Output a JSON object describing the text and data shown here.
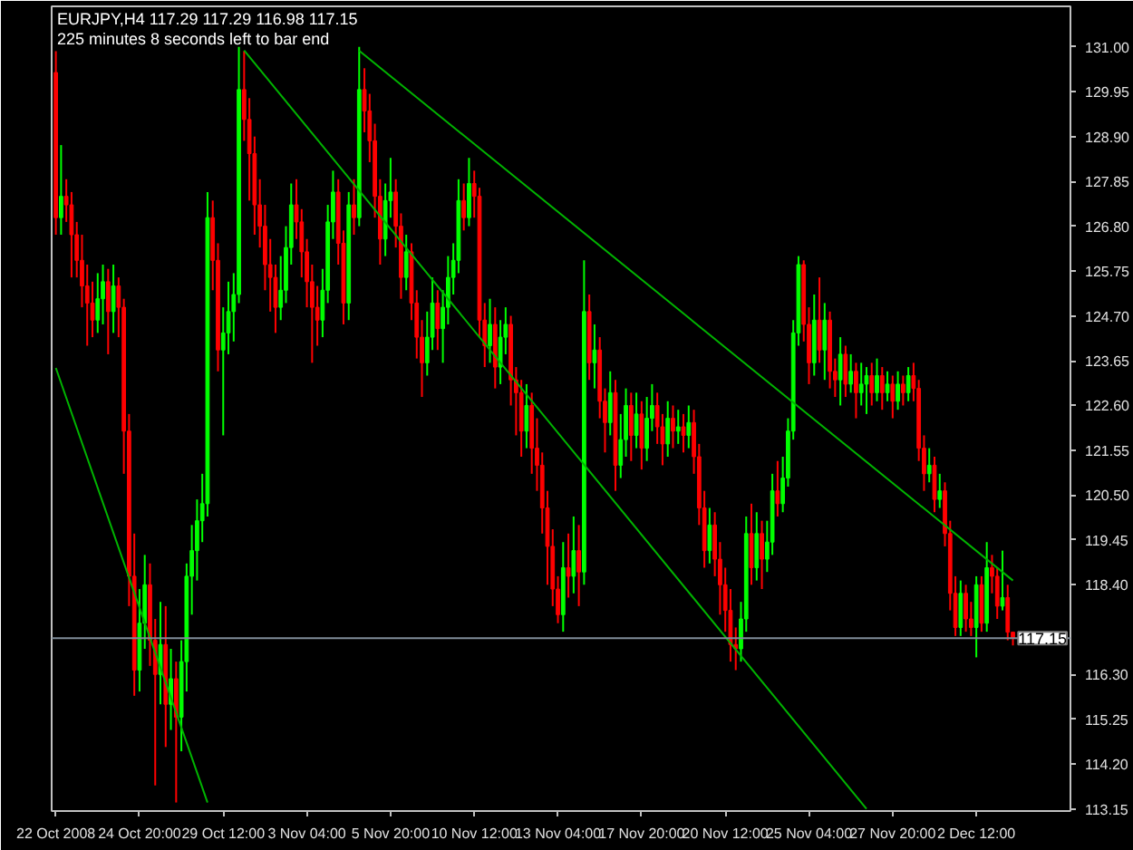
{
  "chart_data": {
    "type": "candlestick",
    "title": "EURJPY,H4  117.29 117.29 116.98 117.15",
    "subtitle": "225 minutes 8 seconds left to bar end",
    "categories": [
      "22 Oct 2008",
      null,
      null,
      null,
      null,
      null,
      null,
      null,
      null,
      null,
      null,
      null,
      null,
      null,
      null,
      null,
      "24 Oct 20:00",
      null,
      null,
      null,
      null,
      null,
      null,
      null,
      null,
      null,
      null,
      null,
      null,
      null,
      null,
      null,
      "29 Oct 12:00",
      null,
      null,
      null,
      null,
      null,
      null,
      null,
      null,
      null,
      null,
      null,
      null,
      null,
      null,
      null,
      "3 Nov 04:00",
      null,
      null,
      null,
      null,
      null,
      null,
      null,
      null,
      null,
      null,
      null,
      null,
      null,
      null,
      null,
      "5 Nov 20:00",
      null,
      null,
      null,
      null,
      null,
      null,
      null,
      null,
      null,
      null,
      null,
      null,
      null,
      null,
      null,
      "10 Nov 12:00",
      null,
      null,
      null,
      null,
      null,
      null,
      null,
      null,
      null,
      null,
      null,
      null,
      null,
      null,
      null,
      "13 Nov 04:00",
      null,
      null,
      null,
      null,
      null,
      null,
      null,
      null,
      null,
      null,
      null,
      null,
      null,
      null,
      null,
      "17 Nov 20:00",
      null,
      null,
      null,
      null,
      null,
      null,
      null,
      null,
      null,
      null,
      null,
      null,
      null,
      null,
      null,
      "20 Nov 12:00",
      null,
      null,
      null,
      null,
      null,
      null,
      null,
      null,
      null,
      null,
      null,
      null,
      null,
      null,
      null,
      "25 Nov 04:00",
      null,
      null,
      null,
      null,
      null,
      null,
      null,
      null,
      null,
      null,
      null,
      null,
      null,
      null,
      null,
      "27 Nov 20:00",
      null,
      null,
      null,
      null,
      null,
      null,
      null,
      null,
      null,
      null,
      null,
      null,
      null,
      null,
      null,
      "2 Dec 12:00",
      null,
      null,
      null,
      null,
      null,
      null,
      null
    ],
    "ohlc": [
      [
        130.4,
        130.9,
        126.6,
        127.0
      ],
      [
        127.0,
        128.7,
        126.6,
        127.5
      ],
      [
        127.5,
        127.9,
        126.9,
        127.3
      ],
      [
        127.3,
        127.6,
        125.6,
        126.6
      ],
      [
        126.6,
        126.9,
        125.6,
        126.0
      ],
      [
        126.0,
        126.6,
        124.9,
        125.4
      ],
      [
        125.4,
        125.9,
        124.0,
        125.0
      ],
      [
        125.0,
        125.5,
        124.2,
        124.6
      ],
      [
        124.6,
        125.7,
        124.3,
        125.1
      ],
      [
        125.1,
        125.9,
        124.5,
        125.5
      ],
      [
        125.5,
        125.8,
        123.8,
        124.8
      ],
      [
        124.8,
        125.9,
        124.3,
        125.4
      ],
      [
        125.4,
        125.6,
        124.2,
        124.9
      ],
      [
        124.9,
        125.1,
        121.0,
        122.0
      ],
      [
        122.0,
        122.4,
        117.9,
        118.6
      ],
      [
        118.6,
        119.6,
        115.8,
        116.4
      ],
      [
        116.4,
        118.3,
        115.9,
        117.5
      ],
      [
        117.5,
        119.1,
        116.9,
        118.4
      ],
      [
        118.4,
        118.9,
        116.5,
        117.1
      ],
      [
        117.1,
        117.6,
        113.7,
        116.3
      ],
      [
        116.3,
        118.0,
        115.6,
        117.0
      ],
      [
        117.0,
        117.9,
        114.6,
        115.6
      ],
      [
        115.6,
        116.9,
        115.0,
        116.2
      ],
      [
        116.2,
        116.6,
        113.3,
        115.3
      ],
      [
        115.3,
        117.1,
        114.5,
        116.6
      ],
      [
        116.6,
        118.9,
        115.9,
        118.6
      ],
      [
        118.6,
        119.8,
        117.7,
        119.2
      ],
      [
        119.2,
        120.4,
        118.5,
        119.9
      ],
      [
        119.9,
        121.0,
        119.4,
        120.3
      ],
      [
        120.3,
        127.6,
        120.0,
        127.0
      ],
      [
        127.0,
        127.4,
        125.3,
        126.0
      ],
      [
        126.0,
        126.4,
        123.4,
        123.9
      ],
      [
        123.9,
        124.9,
        121.9,
        124.3
      ],
      [
        124.3,
        125.5,
        123.8,
        124.8
      ],
      [
        124.8,
        125.7,
        124.1,
        125.2
      ],
      [
        125.2,
        131.0,
        125.0,
        130.0
      ],
      [
        130.0,
        130.9,
        128.8,
        129.3
      ],
      [
        129.3,
        129.8,
        127.4,
        128.5
      ],
      [
        128.5,
        128.9,
        126.6,
        127.3
      ],
      [
        127.3,
        127.9,
        126.3,
        126.8
      ],
      [
        126.8,
        127.3,
        125.3,
        125.9
      ],
      [
        125.9,
        126.5,
        124.8,
        125.6
      ],
      [
        125.6,
        125.9,
        124.3,
        124.9
      ],
      [
        124.9,
        126.1,
        124.6,
        125.3
      ],
      [
        125.3,
        126.8,
        125.0,
        126.3
      ],
      [
        126.3,
        127.8,
        125.9,
        127.3
      ],
      [
        127.3,
        127.9,
        126.5,
        126.9
      ],
      [
        126.9,
        127.2,
        125.6,
        126.2
      ],
      [
        126.2,
        126.5,
        124.9,
        125.5
      ],
      [
        125.5,
        125.9,
        123.6,
        124.9
      ],
      [
        124.9,
        125.4,
        124.0,
        124.6
      ],
      [
        124.6,
        125.8,
        124.2,
        125.3
      ],
      [
        125.3,
        127.3,
        125.0,
        126.9
      ],
      [
        126.9,
        128.1,
        126.5,
        127.6
      ],
      [
        127.6,
        127.9,
        125.9,
        126.4
      ],
      [
        126.4,
        126.7,
        124.5,
        125.0
      ],
      [
        125.0,
        127.6,
        124.6,
        127.3
      ],
      [
        127.3,
        127.9,
        126.6,
        127.0
      ],
      [
        127.0,
        131.0,
        126.8,
        130.0
      ],
      [
        130.0,
        130.5,
        129.0,
        129.5
      ],
      [
        129.5,
        129.9,
        128.3,
        128.8
      ],
      [
        128.8,
        129.2,
        127.0,
        127.5
      ],
      [
        127.5,
        127.9,
        125.9,
        126.5
      ],
      [
        126.5,
        127.8,
        126.1,
        127.4
      ],
      [
        127.4,
        128.4,
        127.0,
        127.6
      ],
      [
        127.6,
        127.9,
        126.3,
        126.8
      ],
      [
        126.8,
        127.1,
        125.1,
        125.6
      ],
      [
        125.6,
        126.6,
        125.3,
        126.2
      ],
      [
        126.2,
        126.4,
        124.6,
        125.0
      ],
      [
        125.0,
        125.3,
        123.7,
        124.2
      ],
      [
        124.2,
        124.6,
        122.8,
        123.6
      ],
      [
        123.6,
        124.8,
        123.3,
        124.2
      ],
      [
        124.2,
        125.6,
        123.9,
        125.0
      ],
      [
        125.0,
        125.3,
        123.9,
        124.4
      ],
      [
        124.4,
        125.3,
        123.6,
        124.9
      ],
      [
        124.9,
        126.1,
        124.5,
        125.6
      ],
      [
        125.6,
        126.4,
        125.2,
        126.0
      ],
      [
        126.0,
        127.9,
        125.7,
        127.4
      ],
      [
        127.4,
        127.8,
        126.7,
        127.0
      ],
      [
        127.0,
        128.4,
        126.8,
        127.8
      ],
      [
        127.8,
        128.1,
        127.0,
        127.5
      ],
      [
        127.5,
        127.7,
        124.2,
        124.6
      ],
      [
        124.6,
        125.0,
        123.5,
        124.0
      ],
      [
        124.0,
        125.1,
        123.6,
        124.5
      ],
      [
        124.5,
        124.9,
        123.0,
        123.5
      ],
      [
        123.5,
        124.6,
        123.1,
        124.2
      ],
      [
        124.2,
        124.9,
        123.8,
        124.5
      ],
      [
        124.5,
        124.7,
        122.6,
        123.2
      ],
      [
        123.2,
        123.5,
        121.9,
        122.9
      ],
      [
        122.9,
        123.2,
        121.4,
        122.0
      ],
      [
        122.0,
        123.1,
        121.6,
        122.6
      ],
      [
        122.6,
        122.9,
        121.0,
        121.6
      ],
      [
        121.6,
        122.3,
        120.6,
        121.2
      ],
      [
        121.2,
        121.5,
        119.6,
        120.2
      ],
      [
        120.2,
        120.6,
        118.4,
        119.3
      ],
      [
        119.3,
        119.7,
        117.9,
        118.3
      ],
      [
        118.3,
        118.6,
        117.5,
        117.7
      ],
      [
        117.7,
        119.4,
        117.3,
        118.8
      ],
      [
        118.8,
        119.6,
        118.1,
        118.6
      ],
      [
        118.6,
        120.0,
        118.2,
        119.2
      ],
      [
        119.2,
        119.8,
        117.9,
        118.7
      ],
      [
        118.7,
        126.0,
        118.4,
        124.8
      ],
      [
        124.8,
        125.2,
        123.2,
        123.6
      ],
      [
        123.6,
        124.5,
        123.0,
        123.9
      ],
      [
        123.9,
        124.2,
        122.3,
        122.7
      ],
      [
        122.7,
        123.0,
        121.5,
        122.2
      ],
      [
        122.2,
        123.4,
        121.9,
        122.9
      ],
      [
        122.9,
        123.2,
        120.6,
        121.2
      ],
      [
        121.2,
        122.4,
        120.9,
        121.8
      ],
      [
        121.8,
        123.0,
        121.4,
        122.6
      ],
      [
        122.6,
        122.9,
        121.3,
        121.9
      ],
      [
        121.9,
        122.9,
        121.6,
        122.4
      ],
      [
        122.4,
        122.7,
        121.1,
        121.6
      ],
      [
        121.6,
        122.8,
        121.3,
        122.3
      ],
      [
        122.3,
        123.1,
        122.0,
        122.6
      ],
      [
        122.6,
        122.9,
        121.7,
        122.1
      ],
      [
        122.1,
        122.4,
        121.2,
        121.7
      ],
      [
        121.7,
        122.7,
        121.4,
        122.3
      ],
      [
        122.3,
        122.6,
        121.6,
        122.0
      ],
      [
        122.0,
        122.5,
        121.7,
        122.1
      ],
      [
        122.1,
        122.4,
        121.5,
        121.9
      ],
      [
        121.9,
        122.6,
        121.6,
        122.2
      ],
      [
        122.2,
        122.5,
        121.0,
        121.4
      ],
      [
        121.4,
        121.7,
        119.8,
        120.2
      ],
      [
        120.2,
        120.6,
        118.8,
        119.2
      ],
      [
        119.2,
        120.2,
        118.9,
        119.8
      ],
      [
        119.8,
        120.1,
        118.6,
        119.0
      ],
      [
        119.0,
        119.4,
        117.7,
        118.4
      ],
      [
        118.4,
        118.8,
        117.3,
        117.8
      ],
      [
        117.8,
        118.3,
        116.6,
        117.0
      ],
      [
        117.0,
        117.4,
        116.4,
        116.9
      ],
      [
        116.9,
        118.0,
        116.6,
        117.6
      ],
      [
        117.6,
        120.0,
        117.3,
        119.6
      ],
      [
        119.6,
        120.3,
        118.4,
        118.8
      ],
      [
        118.8,
        120.1,
        118.5,
        119.6
      ],
      [
        119.6,
        119.9,
        118.3,
        119.0
      ],
      [
        119.0,
        119.9,
        118.7,
        119.4
      ],
      [
        119.4,
        121.0,
        119.1,
        120.6
      ],
      [
        120.6,
        121.3,
        120.0,
        120.3
      ],
      [
        120.3,
        121.4,
        120.1,
        120.9
      ],
      [
        120.9,
        122.3,
        120.7,
        122.0
      ],
      [
        122.0,
        124.6,
        121.8,
        124.3
      ],
      [
        124.3,
        126.1,
        124.0,
        125.9
      ],
      [
        125.9,
        126.0,
        124.1,
        124.5
      ],
      [
        124.5,
        124.9,
        123.1,
        123.6
      ],
      [
        123.6,
        125.2,
        123.3,
        124.6
      ],
      [
        124.6,
        125.6,
        123.6,
        123.9
      ],
      [
        123.9,
        125.0,
        123.2,
        124.6
      ],
      [
        124.6,
        124.8,
        123.0,
        123.4
      ],
      [
        123.4,
        123.7,
        122.8,
        123.2
      ],
      [
        123.2,
        124.2,
        122.6,
        123.8
      ],
      [
        123.8,
        124.0,
        122.8,
        123.1
      ],
      [
        123.1,
        123.8,
        122.9,
        123.4
      ],
      [
        123.4,
        123.6,
        122.3,
        122.9
      ],
      [
        122.9,
        123.6,
        122.6,
        123.1
      ],
      [
        123.1,
        123.5,
        122.4,
        123.3
      ],
      [
        123.3,
        123.6,
        122.6,
        122.9
      ],
      [
        122.9,
        123.7,
        122.7,
        123.3
      ],
      [
        123.3,
        123.5,
        122.5,
        122.9
      ],
      [
        122.9,
        123.4,
        122.7,
        123.1
      ],
      [
        123.1,
        123.3,
        122.3,
        122.7
      ],
      [
        122.7,
        123.4,
        122.5,
        123.1
      ],
      [
        123.1,
        123.3,
        122.6,
        122.9
      ],
      [
        122.9,
        123.5,
        122.7,
        123.3
      ],
      [
        123.3,
        123.6,
        122.7,
        123.0
      ],
      [
        123.0,
        123.2,
        121.3,
        121.6
      ],
      [
        121.6,
        121.9,
        120.6,
        121.0
      ],
      [
        121.0,
        121.6,
        120.8,
        121.2
      ],
      [
        121.2,
        121.4,
        120.1,
        120.4
      ],
      [
        120.4,
        121.0,
        120.2,
        120.6
      ],
      [
        120.6,
        120.8,
        119.3,
        119.6
      ],
      [
        119.6,
        119.9,
        117.8,
        118.2
      ],
      [
        118.2,
        118.6,
        117.2,
        117.4
      ],
      [
        117.4,
        118.5,
        117.2,
        118.2
      ],
      [
        118.2,
        118.4,
        117.3,
        117.6
      ],
      [
        117.6,
        118.0,
        117.2,
        117.4
      ],
      [
        117.4,
        118.6,
        116.7,
        118.4
      ],
      [
        118.4,
        118.6,
        117.3,
        117.5
      ],
      [
        117.5,
        119.4,
        117.3,
        118.8
      ],
      [
        118.8,
        119.1,
        118.2,
        118.6
      ],
      [
        118.6,
        118.8,
        117.6,
        117.9
      ],
      [
        117.9,
        119.2,
        117.8,
        118.1
      ],
      [
        118.1,
        118.4,
        117.1,
        117.29
      ],
      [
        117.29,
        117.29,
        116.98,
        117.15
      ]
    ],
    "colors": [
      "#ff0000",
      "#00ff00",
      "#ff0000",
      "#ff0000",
      "#ff0000",
      "#ff0000",
      "#ff0000",
      "#ff0000",
      "#00ff00",
      "#00ff00",
      "#ff0000",
      "#00ff00",
      "#ff0000",
      "#ff0000",
      "#ff0000",
      "#ff0000",
      "#00ff00",
      "#00ff00",
      "#ff0000",
      "#ff0000",
      "#00ff00",
      "#ff0000",
      "#00ff00",
      "#ff0000",
      "#00ff00",
      "#00ff00",
      "#00ff00",
      "#00ff00",
      "#00ff00",
      "#00ff00",
      "#ff0000",
      "#ff0000",
      "#00ff00",
      "#00ff00",
      "#00ff00",
      "#00ff00",
      "#ff0000",
      "#ff0000",
      "#ff0000",
      "#ff0000",
      "#ff0000",
      "#ff0000",
      "#ff0000",
      "#00ff00",
      "#00ff00",
      "#00ff00",
      "#ff0000",
      "#ff0000",
      "#ff0000",
      "#ff0000",
      "#ff0000",
      "#00ff00",
      "#00ff00",
      "#00ff00",
      "#ff0000",
      "#ff0000",
      "#00ff00",
      "#ff0000",
      "#00ff00",
      "#ff0000",
      "#ff0000",
      "#ff0000",
      "#ff0000",
      "#00ff00",
      "#00ff00",
      "#ff0000",
      "#ff0000",
      "#00ff00",
      "#ff0000",
      "#ff0000",
      "#ff0000",
      "#00ff00",
      "#00ff00",
      "#ff0000",
      "#00ff00",
      "#00ff00",
      "#00ff00",
      "#00ff00",
      "#ff0000",
      "#00ff00",
      "#ff0000",
      "#ff0000",
      "#ff0000",
      "#00ff00",
      "#ff0000",
      "#00ff00",
      "#00ff00",
      "#ff0000",
      "#ff0000",
      "#ff0000",
      "#00ff00",
      "#ff0000",
      "#ff0000",
      "#ff0000",
      "#ff0000",
      "#ff0000",
      "#ff0000",
      "#00ff00",
      "#ff0000",
      "#00ff00",
      "#ff0000",
      "#00ff00",
      "#ff0000",
      "#00ff00",
      "#ff0000",
      "#ff0000",
      "#00ff00",
      "#ff0000",
      "#00ff00",
      "#00ff00",
      "#ff0000",
      "#00ff00",
      "#ff0000",
      "#00ff00",
      "#00ff00",
      "#ff0000",
      "#ff0000",
      "#00ff00",
      "#ff0000",
      "#00ff00",
      "#ff0000",
      "#00ff00",
      "#ff0000",
      "#ff0000",
      "#ff0000",
      "#00ff00",
      "#ff0000",
      "#ff0000",
      "#ff0000",
      "#ff0000",
      "#ff0000",
      "#00ff00",
      "#00ff00",
      "#ff0000",
      "#00ff00",
      "#ff0000",
      "#00ff00",
      "#00ff00",
      "#ff0000",
      "#00ff00",
      "#00ff00",
      "#00ff00",
      "#00ff00",
      "#ff0000",
      "#ff0000",
      "#00ff00",
      "#ff0000",
      "#00ff00",
      "#ff0000",
      "#ff0000",
      "#00ff00",
      "#ff0000",
      "#00ff00",
      "#ff0000",
      "#00ff00",
      "#00ff00",
      "#ff0000",
      "#00ff00",
      "#ff0000",
      "#00ff00",
      "#ff0000",
      "#00ff00",
      "#ff0000",
      "#00ff00",
      "#ff0000",
      "#ff0000",
      "#ff0000",
      "#00ff00",
      "#ff0000",
      "#00ff00",
      "#ff0000",
      "#ff0000",
      "#ff0000",
      "#00ff00",
      "#ff0000",
      "#ff0000",
      "#00ff00",
      "#ff0000",
      "#00ff00",
      "#ff0000",
      "#ff0000",
      "#00ff00",
      "#ff0000",
      "#ff0000"
    ],
    "series": [
      {
        "type": "line",
        "color": "#00b400",
        "values": [
          123.48,
          null,
          null,
          null,
          null,
          null,
          null,
          null,
          null,
          null,
          null,
          null,
          null,
          null,
          null,
          null,
          null,
          null,
          null,
          null,
          null,
          null,
          null,
          null,
          null,
          null,
          null,
          null,
          null,
          113.3,
          null,
          null,
          null,
          null,
          null,
          null,
          null,
          null,
          null,
          null,
          null,
          null,
          null,
          null,
          null,
          null,
          null,
          null,
          null,
          null,
          null,
          null,
          null,
          null,
          null,
          null,
          null,
          null,
          null,
          null,
          null,
          null,
          null,
          null,
          null,
          null,
          null,
          null,
          null,
          null,
          null,
          null,
          null,
          null,
          null,
          null,
          null,
          null,
          null,
          null,
          null,
          null,
          null,
          null,
          null,
          null,
          null,
          null,
          null,
          null,
          null,
          null,
          null,
          null,
          null,
          null,
          null,
          null,
          null,
          null,
          null,
          null,
          null,
          null,
          null,
          null,
          null,
          null,
          null,
          null,
          null,
          null,
          null,
          null,
          null,
          null,
          null,
          null,
          null,
          null,
          null,
          null,
          null,
          null,
          null,
          null,
          null,
          null,
          null,
          null,
          null,
          null,
          null,
          null,
          null,
          null,
          null,
          null,
          null,
          null,
          null,
          null,
          null,
          null,
          null,
          null,
          null,
          null,
          null,
          null,
          null,
          null,
          null,
          null,
          null,
          null,
          null,
          null,
          null,
          null,
          null,
          null,
          null,
          null,
          null,
          null,
          null,
          null,
          null,
          null,
          null,
          null,
          null,
          null,
          null,
          null,
          null,
          null,
          null,
          null,
          null,
          null,
          null,
          null
        ]
      },
      {
        "type": "line",
        "color": "#00b400",
        "values": [
          null,
          null,
          null,
          null,
          null,
          null,
          null,
          null,
          null,
          null,
          null,
          null,
          null,
          null,
          null,
          null,
          null,
          null,
          null,
          null,
          null,
          null,
          null,
          null,
          null,
          null,
          null,
          null,
          null,
          null,
          null,
          null,
          null,
          null,
          null,
          null,
          130.92,
          null,
          null,
          null,
          null,
          null,
          null,
          null,
          null,
          null,
          null,
          null,
          null,
          null,
          null,
          null,
          null,
          null,
          null,
          null,
          null,
          null,
          null,
          null,
          null,
          null,
          null,
          null,
          null,
          null,
          null,
          null,
          null,
          null,
          null,
          null,
          null,
          null,
          null,
          null,
          null,
          null,
          null,
          null,
          null,
          null,
          null,
          null,
          null,
          null,
          null,
          null,
          null,
          null,
          null,
          null,
          null,
          null,
          null,
          null,
          null,
          null,
          null,
          null,
          null,
          null,
          null,
          null,
          null,
          null,
          null,
          null,
          null,
          null,
          null,
          null,
          null,
          null,
          null,
          null,
          null,
          null,
          null,
          null,
          null,
          null,
          null,
          null,
          null,
          null,
          null,
          null,
          null,
          null,
          null,
          null,
          null,
          null,
          null,
          null,
          null,
          null,
          null,
          null,
          null,
          null,
          null,
          null,
          null,
          null,
          null,
          null,
          null,
          null,
          null,
          null,
          null,
          null,
          null,
          113.15,
          null,
          null,
          null,
          null,
          null,
          null,
          null,
          null,
          null,
          null,
          null,
          null,
          null,
          null,
          null,
          null,
          null,
          null,
          null,
          null,
          null,
          null,
          null,
          null,
          null,
          null,
          null,
          null
        ]
      },
      {
        "type": "line",
        "color": "#00b400",
        "values": [
          null,
          null,
          null,
          null,
          null,
          null,
          null,
          null,
          null,
          null,
          null,
          null,
          null,
          null,
          null,
          null,
          null,
          null,
          null,
          null,
          null,
          null,
          null,
          null,
          null,
          null,
          null,
          null,
          null,
          null,
          null,
          null,
          null,
          null,
          null,
          null,
          null,
          null,
          null,
          null,
          null,
          null,
          null,
          null,
          null,
          null,
          null,
          null,
          null,
          null,
          null,
          null,
          null,
          null,
          null,
          null,
          null,
          null,
          130.91,
          null,
          null,
          null,
          null,
          null,
          null,
          null,
          null,
          null,
          null,
          null,
          null,
          null,
          null,
          null,
          null,
          null,
          null,
          null,
          null,
          null,
          null,
          null,
          null,
          null,
          null,
          null,
          null,
          null,
          null,
          null,
          null,
          null,
          null,
          null,
          null,
          null,
          null,
          null,
          null,
          null,
          null,
          null,
          null,
          null,
          null,
          null,
          null,
          null,
          null,
          null,
          null,
          null,
          null,
          null,
          null,
          null,
          null,
          null,
          null,
          null,
          null,
          null,
          null,
          null,
          null,
          null,
          null,
          null,
          null,
          null,
          null,
          null,
          null,
          null,
          null,
          null,
          null,
          null,
          null,
          null,
          null,
          null,
          null,
          null,
          null,
          null,
          null,
          null,
          null,
          null,
          null,
          null,
          null,
          null,
          null,
          null,
          null,
          null,
          null,
          null,
          null,
          null,
          null,
          null,
          null,
          null,
          null,
          null,
          null,
          null,
          null,
          null,
          null,
          null,
          null,
          null,
          null,
          null,
          null,
          null,
          null,
          null,
          null,
          118.5
        ]
      }
    ],
    "ylim": [
      113.1,
      131.95
    ],
    "yticks": [
      {
        "value": 131,
        "label": "131.00"
      },
      {
        "value": 129.95,
        "label": "129.95"
      },
      {
        "value": 128.9,
        "label": "128.90"
      },
      {
        "value": 127.85,
        "label": "127.85"
      },
      {
        "value": 126.8,
        "label": "126.80"
      },
      {
        "value": 125.75,
        "label": "125.75"
      },
      {
        "value": 124.7,
        "label": "124.70"
      },
      {
        "value": 123.65,
        "label": "123.65"
      },
      {
        "value": 122.6,
        "label": "122.60"
      },
      {
        "value": 121.55,
        "label": "121.55"
      },
      {
        "value": 120.5,
        "label": "120.50"
      },
      {
        "value": 119.45,
        "label": "119.45"
      },
      {
        "value": 118.4,
        "label": "118.40"
      },
      {
        "value": 116.3,
        "label": "116.30"
      },
      {
        "value": 115.25,
        "label": "115.25"
      },
      {
        "value": 114.2,
        "label": "114.20"
      },
      {
        "value": 113.15,
        "label": "113.15"
      }
    ],
    "ref_lines": [
      {
        "axis": "y",
        "value": 117.15,
        "label": "117.15",
        "color": "#7f8c99"
      }
    ]
  }
}
